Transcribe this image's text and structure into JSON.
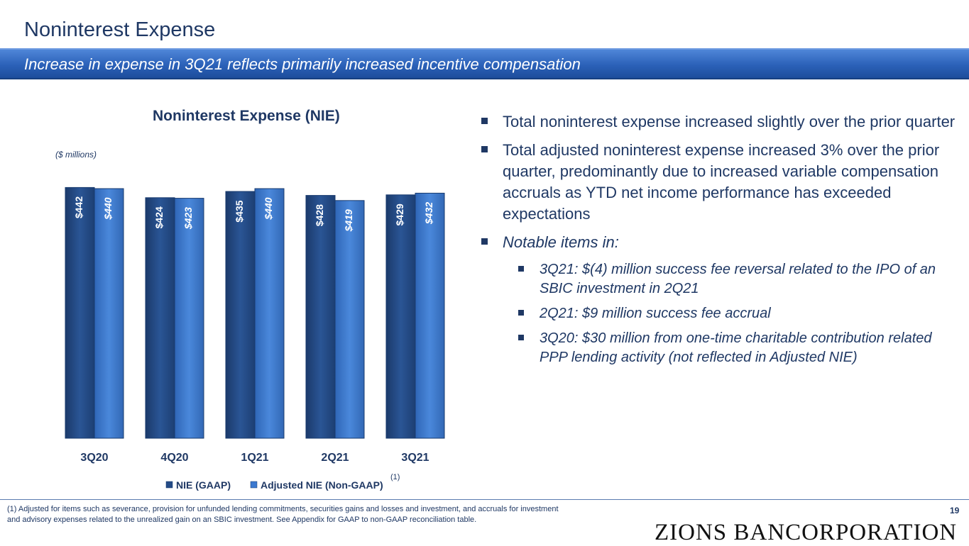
{
  "page": {
    "title": "Noninterest Expense",
    "subtitle": "Increase in expense in 3Q21 reflects primarily increased incentive compensation",
    "page_number": "19",
    "logo_text": "ZIONS BANCORPORATION",
    "footnote": "(1) Adjusted for items such as severance, provision for unfunded lending commitments, securities gains and losses and investment, and accruals for investment and advisory expenses related to the unrealized gain on an SBIC investment.  See Appendix for GAAP to non-GAAP reconciliation table."
  },
  "chart": {
    "title": "Noninterest Expense (NIE)",
    "units_label": "($ millions)",
    "legend_footnote_marker": "(1)"
  },
  "chart_data": {
    "type": "bar",
    "categories": [
      "3Q20",
      "4Q20",
      "1Q21",
      "2Q21",
      "3Q21"
    ],
    "series": [
      {
        "name": "NIE (GAAP)",
        "values": [
          442,
          424,
          435,
          428,
          429
        ],
        "labels": [
          "$442",
          "$424",
          "$435",
          "$428",
          "$429"
        ],
        "color": "#244b86"
      },
      {
        "name": "Adjusted NIE (Non-GAAP)",
        "values": [
          440,
          423,
          440,
          419,
          432
        ],
        "labels": [
          "$440",
          "$423",
          "$440",
          "$419",
          "$432"
        ],
        "color": "#3c79cf"
      }
    ],
    "title": "Noninterest Expense (NIE)",
    "ylabel": "($ millions)",
    "ylim": [
      0,
      450
    ],
    "legend_position": "bottom",
    "grid": false
  },
  "bullets": {
    "b1": "Total noninterest expense increased slightly over the prior quarter",
    "b2": "Total adjusted noninterest expense increased 3% over the prior quarter, predominantly due to increased variable compensation accruals as YTD net income performance has exceeded expectations",
    "b3": "Notable items in:",
    "sub1": "3Q21: $(4) million success fee reversal related to the IPO of an SBIC investment in 2Q21",
    "sub2": "2Q21: $9 million success fee accrual",
    "sub3": "3Q20: $30 million from one-time charitable contribution related PPP lending activity (not reflected in Adjusted NIE)"
  },
  "colors": {
    "dark_navy": "#1f3864",
    "banner_blue": "#2b61b8",
    "bar_gaap": "#244b86",
    "bar_adjusted": "#3c79cf"
  }
}
